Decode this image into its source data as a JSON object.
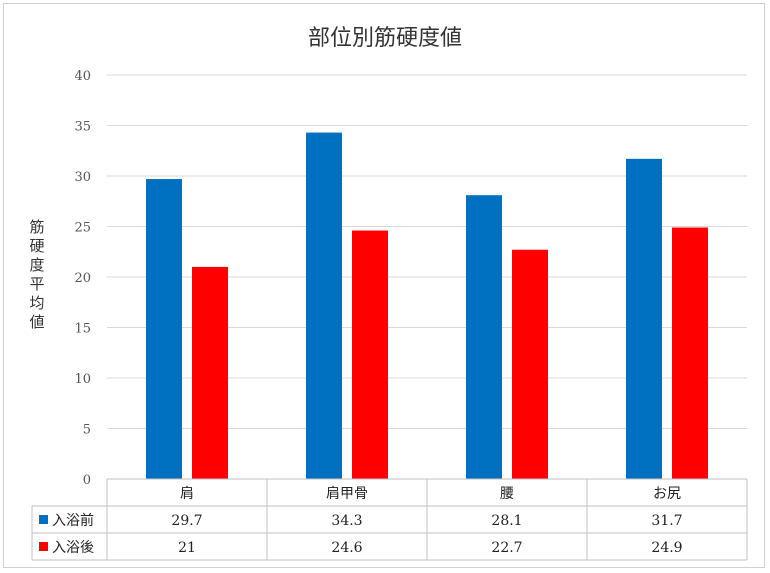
{
  "chart_data": {
    "type": "bar",
    "title": "部位別筋硬度値",
    "ylabel": "筋硬度平均値",
    "xlabel": "",
    "ylim": [
      0,
      40
    ],
    "yticks": [
      0,
      5,
      10,
      15,
      20,
      25,
      30,
      35,
      40
    ],
    "grid": true,
    "legend": "data-table",
    "categories": [
      "肩",
      "肩甲骨",
      "腰",
      "お尻"
    ],
    "series": [
      {
        "name": "入浴前",
        "color": "#0070c0",
        "values": [
          29.7,
          34.3,
          28.1,
          31.7
        ]
      },
      {
        "name": "入浴後",
        "color": "#ff0000",
        "values": [
          21,
          24.6,
          22.7,
          24.9
        ]
      }
    ]
  }
}
